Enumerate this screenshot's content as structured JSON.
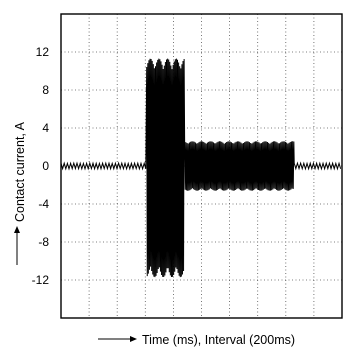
{
  "chart_data": {
    "type": "line",
    "title": "",
    "xlabel": "Time (ms), Interval (200ms)",
    "ylabel": "Contact current, A",
    "ylim": [
      -16,
      16
    ],
    "xlim": [
      0,
      10
    ],
    "y_ticks": [
      12,
      8,
      4,
      0,
      -4,
      -8,
      -12
    ],
    "x_tick_labels": [],
    "grid": true,
    "grid_style": "dotted",
    "legend": "none",
    "line_color": "#000000",
    "series": [
      {
        "description": "current waveform",
        "segments": [
          {
            "x_start": 0.0,
            "x_end": 3.05,
            "y_min": -0.3,
            "y_max": 0.3
          },
          {
            "x_start": 3.05,
            "x_end": 4.4,
            "y_min": -11.7,
            "y_max": 11.3
          },
          {
            "x_start": 4.4,
            "x_end": 8.3,
            "y_min": -2.6,
            "y_max": 2.6
          },
          {
            "x_start": 8.3,
            "x_end": 10.0,
            "y_min": -0.3,
            "y_max": 0.3
          }
        ]
      }
    ]
  }
}
